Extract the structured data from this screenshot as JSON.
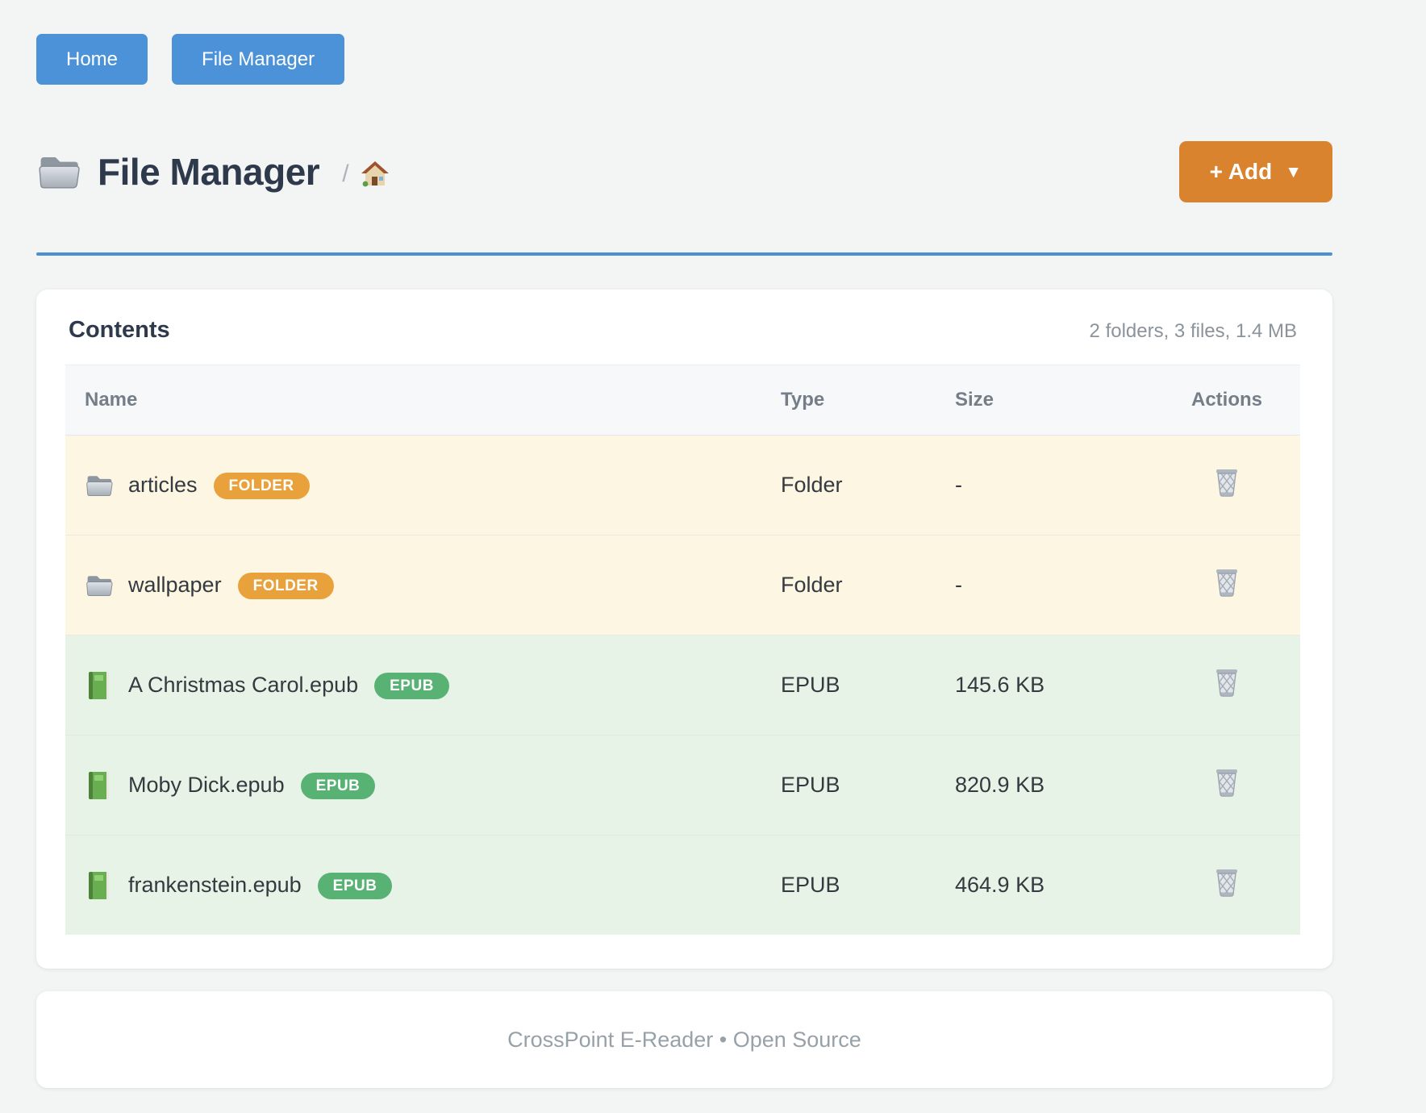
{
  "nav": {
    "home_label": "Home",
    "file_manager_label": "File Manager"
  },
  "header": {
    "title": "File Manager",
    "breadcrumb_separator": "/",
    "add_label": "+ Add",
    "add_caret": "▼"
  },
  "card": {
    "title": "Contents",
    "summary": "2 folders, 3 files, 1.4 MB",
    "table": {
      "headers": [
        "Name",
        "Type",
        "Size",
        "Actions"
      ],
      "rows": [
        {
          "name": "articles",
          "badge": "FOLDER",
          "kind": "folder",
          "type": "Folder",
          "size": "-"
        },
        {
          "name": "wallpaper",
          "badge": "FOLDER",
          "kind": "folder",
          "type": "Folder",
          "size": "-"
        },
        {
          "name": "A Christmas Carol.epub",
          "badge": "EPUB",
          "kind": "epub",
          "type": "EPUB",
          "size": "145.6 KB"
        },
        {
          "name": "Moby Dick.epub",
          "badge": "EPUB",
          "kind": "epub",
          "type": "EPUB",
          "size": "820.9 KB"
        },
        {
          "name": "frankenstein.epub",
          "badge": "EPUB",
          "kind": "epub",
          "type": "EPUB",
          "size": "464.9 KB"
        }
      ]
    }
  },
  "footer": {
    "text": "CrossPoint E-Reader • Open Source"
  },
  "icons": {
    "title": "folder-icon",
    "breadcrumb": "house-icon",
    "folder_row": "folder-icon",
    "epub_row": "green-book-icon",
    "delete": "trash-icon",
    "add_caret": "caret-down-icon"
  },
  "colors": {
    "nav_button": "#4c92d8",
    "divider": "#4a90d2",
    "add_button": "#d9832e",
    "badge_folder": "#e9a23b",
    "badge_epub": "#58b274",
    "row_folder_bg": "#fdf6e2",
    "row_epub_bg": "#e7f3e7",
    "page_bg": "#f3f4f4"
  }
}
